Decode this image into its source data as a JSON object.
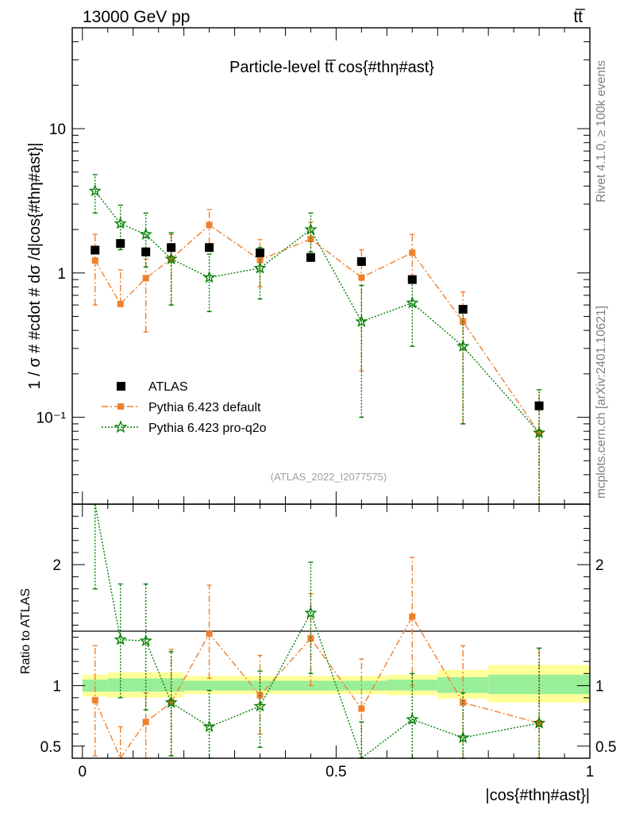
{
  "header": {
    "energy_label": "13000 GeV pp",
    "process_label": "tt̅"
  },
  "side_labels": {
    "rivet": "Rivet 4.1.0, ≥ 100k events",
    "source": "mcplots.cern.ch [arXiv:2401.10621]"
  },
  "chart_data": [
    {
      "type": "scatter",
      "panel": "main",
      "title": "Particle-level tt̅ cos{#thη#ast}",
      "ylabel": "1 / σ # #cdot # dσ /d|cos{#thη#ast}|",
      "xlabel": "|cos{#thη#ast}|",
      "yscale": "log",
      "ylim": [
        0.025,
        50
      ],
      "xlim": [
        -0.02,
        1.0
      ],
      "analysis_tag": "(ATLAS_2022_I2077575)",
      "legend_position": "bottom-left",
      "ytick_labels": [
        "10⁻¹",
        "1",
        "10"
      ],
      "series": [
        {
          "name": "ATLAS",
          "color": "#000000",
          "marker": "square",
          "x": [
            0.025,
            0.075,
            0.125,
            0.175,
            0.25,
            0.35,
            0.45,
            0.55,
            0.65,
            0.75,
            0.9
          ],
          "y": [
            1.44,
            1.6,
            1.4,
            1.5,
            1.5,
            1.38,
            1.28,
            1.2,
            0.9,
            0.56,
            0.12
          ]
        },
        {
          "name": "Pythia 6.423 default",
          "color": "#f07f2d",
          "marker": "square",
          "line": "dashdot",
          "x": [
            0.025,
            0.075,
            0.125,
            0.175,
            0.25,
            0.35,
            0.45,
            0.55,
            0.65,
            0.75,
            0.9
          ],
          "y": [
            1.22,
            0.61,
            0.92,
            1.25,
            2.15,
            1.23,
            1.72,
            0.93,
            1.38,
            0.46,
            0.078
          ],
          "yerr_low": [
            0.6,
            0.61,
            0.39,
            0.6,
            1.6,
            0.8,
            1.3,
            0.21,
            0.9,
            0.09,
            0.02
          ],
          "yerr_high": [
            1.85,
            1.05,
            1.25,
            1.85,
            2.75,
            1.7,
            2.25,
            1.45,
            1.85,
            0.74,
            0.155
          ]
        },
        {
          "name": "Pythia 6.423 pro-q2o",
          "color": "#007f00",
          "marker": "star",
          "line": "dotted",
          "x": [
            0.025,
            0.075,
            0.125,
            0.175,
            0.25,
            0.35,
            0.45,
            0.55,
            0.65,
            0.75,
            0.9
          ],
          "y": [
            3.7,
            2.2,
            1.85,
            1.25,
            0.93,
            1.08,
            2.0,
            0.46,
            0.62,
            0.31,
            0.078
          ],
          "yerr_low": [
            2.6,
            1.45,
            1.1,
            0.6,
            0.54,
            0.66,
            1.4,
            0.1,
            0.31,
            0.09,
            0.02
          ],
          "yerr_high": [
            4.8,
            2.95,
            2.6,
            1.9,
            1.35,
            1.5,
            2.6,
            0.82,
            0.93,
            0.53,
            0.155
          ]
        }
      ]
    },
    {
      "type": "scatter",
      "panel": "ratio",
      "ylabel": "Ratio to ATLAS",
      "xlabel": "|cos{#thη#ast}|",
      "ylim": [
        0.4,
        2.5
      ],
      "xlim": [
        -0.02,
        1.0
      ],
      "yticks": [
        0.5,
        1,
        2
      ],
      "ytick_labels": [
        "0.5",
        "1",
        "2"
      ],
      "xticks": [
        0,
        0.5,
        1
      ],
      "xtick_labels": [
        "0",
        "0.5",
        "1"
      ],
      "bands": [
        {
          "x0": 0.0,
          "x1": 0.05,
          "inner": [
            0.95,
            1.05
          ],
          "outer": [
            0.91,
            1.09
          ]
        },
        {
          "x0": 0.05,
          "x1": 0.1,
          "inner": [
            0.95,
            1.06
          ],
          "outer": [
            0.9,
            1.11
          ]
        },
        {
          "x0": 0.1,
          "x1": 0.15,
          "inner": [
            0.95,
            1.06
          ],
          "outer": [
            0.9,
            1.11
          ]
        },
        {
          "x0": 0.15,
          "x1": 0.2,
          "inner": [
            0.95,
            1.06
          ],
          "outer": [
            0.9,
            1.11
          ]
        },
        {
          "x0": 0.2,
          "x1": 0.3,
          "inner": [
            0.96,
            1.04
          ],
          "outer": [
            0.93,
            1.08
          ]
        },
        {
          "x0": 0.3,
          "x1": 0.4,
          "inner": [
            0.96,
            1.04
          ],
          "outer": [
            0.93,
            1.08
          ]
        },
        {
          "x0": 0.4,
          "x1": 0.5,
          "inner": [
            0.96,
            1.04
          ],
          "outer": [
            0.93,
            1.08
          ]
        },
        {
          "x0": 0.5,
          "x1": 0.6,
          "inner": [
            0.96,
            1.04
          ],
          "outer": [
            0.93,
            1.08
          ]
        },
        {
          "x0": 0.6,
          "x1": 0.7,
          "inner": [
            0.96,
            1.05
          ],
          "outer": [
            0.92,
            1.09
          ]
        },
        {
          "x0": 0.7,
          "x1": 0.8,
          "inner": [
            0.94,
            1.07
          ],
          "outer": [
            0.89,
            1.13
          ]
        },
        {
          "x0": 0.8,
          "x1": 1.0,
          "inner": [
            0.93,
            1.09
          ],
          "outer": [
            0.86,
            1.17
          ]
        }
      ],
      "series": [
        {
          "name": "Pythia 6.423 default",
          "color": "#f07f2d",
          "marker": "square",
          "line": "dashdot",
          "x": [
            0.025,
            0.075,
            0.125,
            0.175,
            0.25,
            0.35,
            0.45,
            0.55,
            0.65,
            0.75,
            0.9
          ],
          "y": [
            0.88,
            0.38,
            0.7,
            0.86,
            1.43,
            0.92,
            1.39,
            0.81,
            1.57,
            0.86,
            0.69
          ],
          "yerr_low": [
            0.42,
            0.25,
            0.3,
            0.42,
            1.06,
            0.6,
            1.0,
            0.17,
            1.0,
            0.16,
            0.15
          ],
          "yerr_high": [
            1.33,
            0.66,
            0.94,
            1.3,
            1.83,
            1.25,
            1.76,
            1.22,
            2.06,
            1.33,
            1.31
          ]
        },
        {
          "name": "Pythia 6.423 pro-q2o",
          "color": "#007f00",
          "marker": "star",
          "line": "dotted",
          "x": [
            0.025,
            0.075,
            0.125,
            0.175,
            0.25,
            0.35,
            0.45,
            0.55,
            0.65,
            0.75,
            0.9
          ],
          "y": [
            2.55,
            1.38,
            1.37,
            0.86,
            0.66,
            0.83,
            1.6,
            0.39,
            0.72,
            0.57,
            0.69
          ],
          "yerr_low": [
            1.8,
            0.9,
            0.8,
            0.42,
            0.36,
            0.49,
            1.1,
            0.08,
            0.35,
            0.16,
            0.15
          ],
          "yerr_high": [
            3.3,
            1.84,
            1.84,
            1.28,
            0.96,
            1.12,
            2.02,
            0.7,
            1.1,
            0.94,
            1.31
          ]
        }
      ]
    }
  ]
}
